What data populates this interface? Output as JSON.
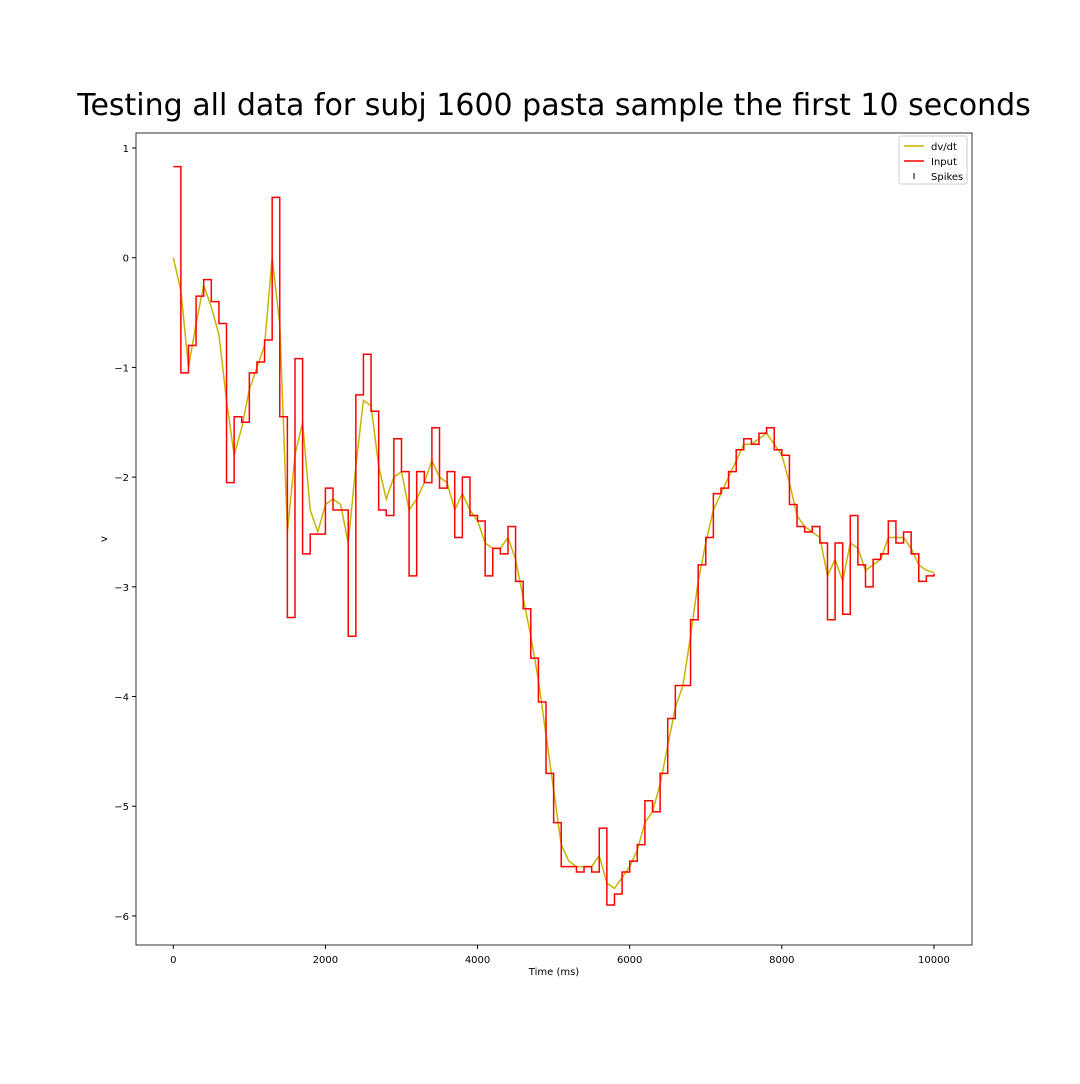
{
  "chart_data": {
    "type": "line",
    "title": "Testing all data for subj 1600 pasta sample the first 10 seconds",
    "xlabel": "Time (ms)",
    "ylabel": "v",
    "x": [
      0,
      100,
      200,
      300,
      400,
      500,
      600,
      700,
      800,
      900,
      1000,
      1100,
      1200,
      1300,
      1400,
      1500,
      1600,
      1700,
      1800,
      1900,
      2000,
      2100,
      2200,
      2300,
      2400,
      2500,
      2600,
      2700,
      2800,
      2900,
      3000,
      3100,
      3200,
      3300,
      3400,
      3500,
      3600,
      3700,
      3800,
      3900,
      4000,
      4100,
      4200,
      4300,
      4400,
      4500,
      4600,
      4700,
      4800,
      4900,
      5000,
      5100,
      5200,
      5300,
      5400,
      5500,
      5600,
      5700,
      5800,
      5900,
      6000,
      6100,
      6200,
      6300,
      6400,
      6500,
      6600,
      6700,
      6800,
      6900,
      7000,
      7100,
      7200,
      7300,
      7400,
      7500,
      7600,
      7700,
      7800,
      7900,
      8000,
      8100,
      8200,
      8300,
      8400,
      8500,
      8600,
      8700,
      8800,
      8900,
      9000,
      9100,
      9200,
      9300,
      9400,
      9500,
      9600,
      9700,
      9800,
      9900,
      10000
    ],
    "series": [
      {
        "name": "dv/dt",
        "color": "#c8b400",
        "step": false,
        "values": [
          0,
          -0.3,
          -1.0,
          -0.6,
          -0.25,
          -0.45,
          -0.7,
          -1.3,
          -1.8,
          -1.55,
          -1.2,
          -1.0,
          -0.8,
          0.0,
          -0.6,
          -2.5,
          -1.8,
          -1.5,
          -2.3,
          -2.5,
          -2.25,
          -2.2,
          -2.25,
          -2.6,
          -1.9,
          -1.3,
          -1.35,
          -1.9,
          -2.2,
          -2.0,
          -1.95,
          -2.3,
          -2.2,
          -2.05,
          -1.85,
          -2.0,
          -2.05,
          -2.3,
          -2.15,
          -2.3,
          -2.4,
          -2.6,
          -2.65,
          -2.65,
          -2.55,
          -2.75,
          -3.1,
          -3.45,
          -3.85,
          -4.35,
          -4.85,
          -5.35,
          -5.5,
          -5.55,
          -5.55,
          -5.55,
          -5.45,
          -5.7,
          -5.75,
          -5.65,
          -5.55,
          -5.4,
          -5.15,
          -5.05,
          -4.8,
          -4.45,
          -4.1,
          -3.9,
          -3.45,
          -2.95,
          -2.6,
          -2.3,
          -2.15,
          -2.0,
          -1.85,
          -1.7,
          -1.7,
          -1.65,
          -1.6,
          -1.7,
          -1.8,
          -2.05,
          -2.35,
          -2.45,
          -2.5,
          -2.55,
          -2.9,
          -2.75,
          -2.95,
          -2.6,
          -2.65,
          -2.85,
          -2.8,
          -2.75,
          -2.55,
          -2.55,
          -2.55,
          -2.65,
          -2.8,
          -2.85,
          -2.87
        ]
      },
      {
        "name": "Input",
        "color": "#ff0000",
        "step": true,
        "values": [
          0.83,
          -1.05,
          -0.8,
          -0.35,
          -0.2,
          -0.4,
          -0.6,
          -2.05,
          -1.45,
          -1.5,
          -1.05,
          -0.95,
          -0.75,
          0.55,
          -1.45,
          -3.28,
          -0.92,
          -2.7,
          -2.52,
          -2.52,
          -2.1,
          -2.3,
          -2.3,
          -3.45,
          -1.25,
          -0.88,
          -1.4,
          -2.3,
          -2.35,
          -1.65,
          -1.95,
          -2.9,
          -1.95,
          -2.05,
          -1.55,
          -2.1,
          -1.95,
          -2.55,
          -2.0,
          -2.35,
          -2.4,
          -2.9,
          -2.65,
          -2.7,
          -2.45,
          -2.95,
          -3.2,
          -3.65,
          -4.05,
          -4.7,
          -5.15,
          -5.55,
          -5.55,
          -5.6,
          -5.55,
          -5.6,
          -5.2,
          -5.9,
          -5.8,
          -5.6,
          -5.5,
          -5.35,
          -4.95,
          -5.05,
          -4.7,
          -4.2,
          -3.9,
          -3.9,
          -3.3,
          -2.8,
          -2.55,
          -2.15,
          -2.1,
          -1.95,
          -1.75,
          -1.65,
          -1.7,
          -1.6,
          -1.55,
          -1.75,
          -1.8,
          -2.25,
          -2.45,
          -2.5,
          -2.45,
          -2.6,
          -3.3,
          -2.6,
          -3.25,
          -2.35,
          -2.8,
          -3.0,
          -2.75,
          -2.7,
          -2.4,
          -2.6,
          -2.5,
          -2.7,
          -2.95,
          -2.9,
          -2.88
        ]
      },
      {
        "name": "Spikes",
        "color": "#000000",
        "marker": "|",
        "values": [
          null,
          null,
          null,
          null,
          null,
          null,
          null,
          null,
          null,
          null,
          null,
          null,
          null,
          null,
          null,
          null,
          null,
          null,
          null,
          null,
          null,
          null,
          null,
          null,
          null,
          null,
          null,
          null,
          null,
          null,
          null,
          null,
          null,
          null,
          null,
          null,
          null,
          null,
          null,
          null,
          null,
          null,
          null,
          null,
          null,
          null,
          null,
          null,
          null,
          null,
          null,
          null,
          null,
          null,
          null,
          null,
          null,
          null,
          null,
          null,
          null,
          null,
          null,
          null,
          null,
          null,
          null,
          null,
          null,
          null,
          null,
          null,
          null,
          null,
          null,
          null,
          null,
          null,
          null,
          null,
          null,
          null,
          null,
          null,
          null,
          null,
          null,
          null,
          null,
          null,
          null,
          null,
          null,
          null,
          null,
          null,
          null,
          null,
          null,
          null,
          null
        ]
      }
    ],
    "xlim": [
      -490,
      10500
    ],
    "ylim": [
      -6.265,
      1.137
    ],
    "xticks": [
      0,
      2000,
      4000,
      6000,
      8000,
      10000
    ],
    "yticks": [
      1,
      0,
      {
        "value": -1,
        "label": "−1"
      },
      {
        "value": -2,
        "label": "−2"
      },
      {
        "value": -3,
        "label": "−3"
      },
      {
        "value": -4,
        "label": "−4"
      },
      {
        "value": -5,
        "label": "−5"
      },
      {
        "value": -6,
        "label": "−6"
      }
    ],
    "legend": "upper right"
  }
}
